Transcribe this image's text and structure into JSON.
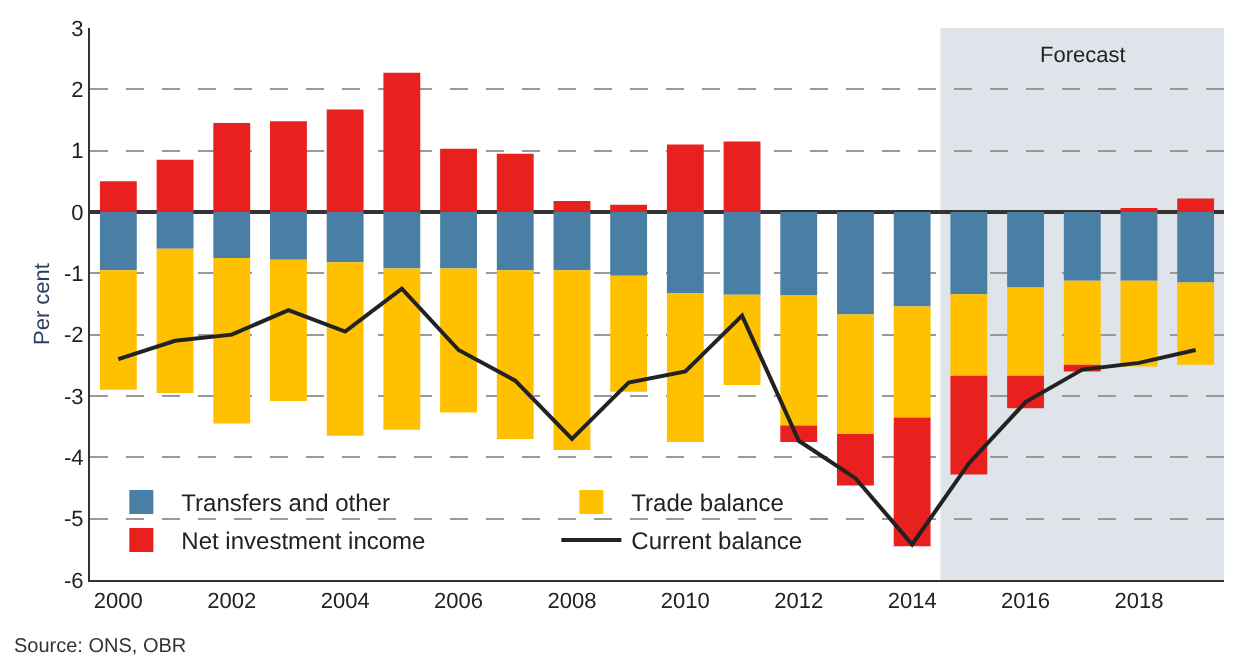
{
  "chart_data": {
    "type": "bar",
    "stacked": true,
    "ylabel": "Per cent",
    "x": [
      2000,
      2001,
      2002,
      2003,
      2004,
      2005,
      2006,
      2007,
      2008,
      2009,
      2010,
      2011,
      2012,
      2013,
      2014,
      2015,
      2016,
      2017,
      2018,
      2019
    ],
    "series": [
      {
        "name": "Transfers and other",
        "color": "#4a7fa5",
        "values": [
          -0.95,
          -0.6,
          -0.75,
          -0.78,
          -0.82,
          -0.92,
          -0.92,
          -0.95,
          -0.95,
          -1.04,
          -1.32,
          -1.35,
          -1.36,
          -1.67,
          -1.54,
          -1.34,
          -1.23,
          -1.12,
          -1.12,
          -1.15
        ]
      },
      {
        "name": "Trade balance",
        "color": "#ffc000",
        "values": [
          -1.95,
          -2.35,
          -2.7,
          -2.3,
          -2.83,
          -2.63,
          -2.35,
          -2.75,
          -2.93,
          -1.89,
          -2.43,
          -1.47,
          -2.12,
          -1.95,
          -1.81,
          -1.33,
          -1.44,
          -1.37,
          -1.4,
          -1.34
        ]
      },
      {
        "name": "Net investment income",
        "color": "#e8201e",
        "values": [
          0.5,
          0.85,
          1.45,
          1.48,
          1.67,
          2.27,
          1.03,
          0.95,
          0.18,
          0.12,
          1.1,
          1.15,
          -0.27,
          -0.84,
          -2.1,
          -1.61,
          -0.53,
          -0.11,
          0.05,
          0.22
        ]
      },
      {
        "name": "Current balance",
        "type": "line",
        "color": "#222222",
        "values": [
          -2.4,
          -2.1,
          -2.0,
          -1.6,
          -1.95,
          -1.25,
          -2.25,
          -2.75,
          -3.7,
          -2.78,
          -2.6,
          -1.69,
          -3.73,
          -4.34,
          -5.42,
          -4.1,
          -3.1,
          -2.57,
          -2.46,
          -2.25
        ]
      }
    ],
    "xlim": [
      1999.5,
      2019.5
    ],
    "xticks": [
      2000,
      2002,
      2004,
      2006,
      2008,
      2010,
      2012,
      2014,
      2016,
      2018
    ],
    "ylim": [
      -6,
      3
    ],
    "yticks": [
      -6,
      -5,
      -4,
      -3,
      -2,
      -1,
      0,
      1,
      2,
      3
    ],
    "grid": "y",
    "legend": "bottom left",
    "bands": [
      {
        "axis": "x",
        "from": 2014.5,
        "to": 2019.5,
        "label": "Forecast",
        "color": "#dfe3ea"
      }
    ],
    "annotations": [
      "Source: ONS, OBR"
    ]
  }
}
